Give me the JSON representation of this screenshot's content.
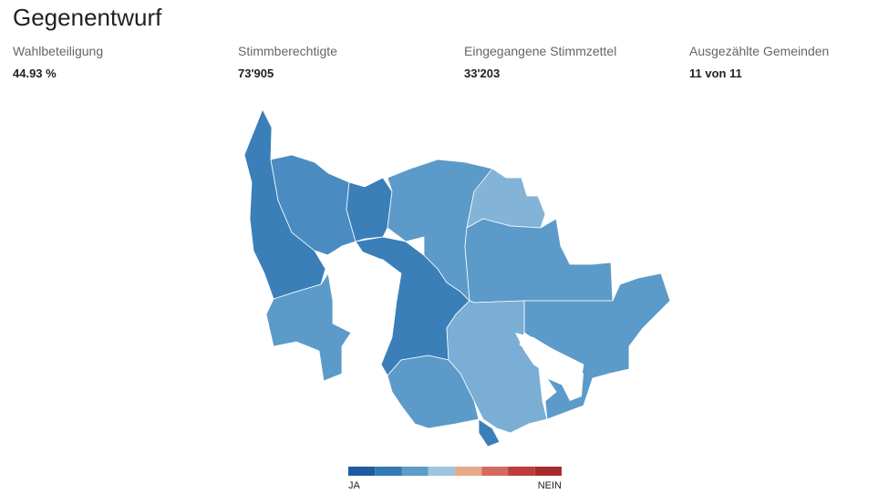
{
  "header": {
    "title": "Gegenentwurf"
  },
  "stats": [
    {
      "label": "Wahlbeteiligung",
      "value": "44.93 %"
    },
    {
      "label": "Stimmberechtigte",
      "value": "73'905"
    },
    {
      "label": "Eingegangene Stimmzettel",
      "value": "33'203"
    },
    {
      "label": "Ausgezählte Gemeinden",
      "value": "11 von 11"
    }
  ],
  "legend": {
    "min_label": "JA",
    "max_label": "NEIN",
    "colors": [
      "#1f5c9f",
      "#3279b5",
      "#5d9bc8",
      "#9cc5e2",
      "#e6a98a",
      "#d4695e",
      "#bf3c3c",
      "#a82b2b"
    ]
  }
}
